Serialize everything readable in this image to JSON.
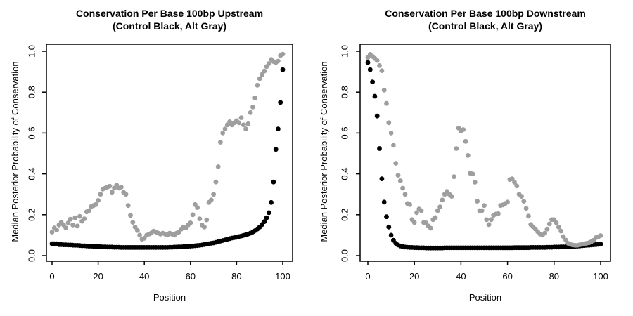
{
  "figure": {
    "background": "#ffffff",
    "text_color": "#000000",
    "control_color": "#000000",
    "alt_color": "#9e9e9e"
  },
  "chart_data": [
    {
      "type": "scatter",
      "title": "Conservation Per Base 100bp Upstream",
      "subtitle": "(Control Black, Alt Gray)",
      "xlabel": "Position",
      "ylabel": "Median Posterior Probability of Conservation",
      "xlim": [
        0,
        100
      ],
      "ylim": [
        0.0,
        1.0
      ],
      "xticks": [
        0,
        20,
        40,
        60,
        80,
        100
      ],
      "ytick_labels": [
        "0.0",
        "0.2",
        "0.4",
        "0.6",
        "0.8",
        "1.0"
      ],
      "grid": false,
      "legend_position": "none",
      "marker": "filled-circle",
      "x": {
        "from": 0,
        "to": 100,
        "step": 1
      },
      "series": [
        {
          "name": "Control",
          "color": "#000000",
          "values": [
            0.058,
            0.058,
            0.058,
            0.054,
            0.054,
            0.053,
            0.053,
            0.052,
            0.052,
            0.051,
            0.05,
            0.05,
            0.049,
            0.048,
            0.048,
            0.047,
            0.046,
            0.046,
            0.045,
            0.045,
            0.044,
            0.044,
            0.043,
            0.043,
            0.042,
            0.042,
            0.042,
            0.041,
            0.041,
            0.041,
            0.04,
            0.04,
            0.04,
            0.04,
            0.04,
            0.04,
            0.04,
            0.04,
            0.04,
            0.04,
            0.04,
            0.04,
            0.04,
            0.04,
            0.04,
            0.04,
            0.04,
            0.04,
            0.04,
            0.04,
            0.04,
            0.041,
            0.041,
            0.042,
            0.042,
            0.043,
            0.043,
            0.044,
            0.044,
            0.045,
            0.046,
            0.047,
            0.048,
            0.049,
            0.05,
            0.052,
            0.054,
            0.056,
            0.058,
            0.06,
            0.062,
            0.065,
            0.068,
            0.071,
            0.074,
            0.077,
            0.08,
            0.083,
            0.086,
            0.088,
            0.09,
            0.093,
            0.096,
            0.099,
            0.102,
            0.106,
            0.11,
            0.115,
            0.122,
            0.13,
            0.14,
            0.152,
            0.166,
            0.185,
            0.21,
            0.26,
            0.36,
            0.52,
            0.62,
            0.75,
            0.91
          ]
        },
        {
          "name": "Alt",
          "color": "#9e9e9e",
          "values": [
            0.115,
            0.135,
            0.125,
            0.15,
            0.163,
            0.15,
            0.135,
            0.16,
            0.178,
            0.15,
            0.185,
            0.145,
            0.192,
            0.168,
            0.18,
            0.214,
            0.22,
            0.24,
            0.245,
            0.25,
            0.27,
            0.3,
            0.325,
            0.33,
            0.335,
            0.34,
            0.31,
            0.33,
            0.345,
            0.33,
            0.335,
            0.31,
            0.3,
            0.245,
            0.197,
            0.163,
            0.14,
            0.123,
            0.1,
            0.08,
            0.085,
            0.1,
            0.105,
            0.11,
            0.12,
            0.115,
            0.11,
            0.105,
            0.11,
            0.105,
            0.1,
            0.11,
            0.105,
            0.1,
            0.11,
            0.115,
            0.13,
            0.14,
            0.135,
            0.15,
            0.16,
            0.2,
            0.25,
            0.235,
            0.18,
            0.15,
            0.14,
            0.175,
            0.26,
            0.272,
            0.3,
            0.36,
            0.435,
            0.555,
            0.6,
            0.62,
            0.64,
            0.655,
            0.64,
            0.65,
            0.66,
            0.65,
            0.675,
            0.64,
            0.62,
            0.645,
            0.7,
            0.727,
            0.772,
            0.834,
            0.866,
            0.886,
            0.903,
            0.925,
            0.94,
            0.96,
            0.95,
            0.945,
            0.952,
            0.979,
            0.986
          ]
        }
      ]
    },
    {
      "type": "scatter",
      "title": "Conservation Per Base 100bp Downstream",
      "subtitle": "(Control Black, Alt Gray)",
      "xlabel": "Position",
      "ylabel": "Median Posterior Probability of Conservation",
      "xlim": [
        0,
        100
      ],
      "ylim": [
        0.0,
        1.0
      ],
      "xticks": [
        0,
        20,
        40,
        60,
        80,
        100
      ],
      "ytick_labels": [
        "0.0",
        "0.2",
        "0.4",
        "0.6",
        "0.8",
        "1.0"
      ],
      "grid": false,
      "legend_position": "none",
      "marker": "filled-circle",
      "x": {
        "from": 0,
        "to": 100,
        "step": 1
      },
      "series": [
        {
          "name": "Control",
          "color": "#000000",
          "values": [
            0.945,
            0.91,
            0.85,
            0.78,
            0.683,
            0.524,
            0.376,
            0.262,
            0.19,
            0.14,
            0.1,
            0.075,
            0.06,
            0.052,
            0.047,
            0.044,
            0.042,
            0.041,
            0.04,
            0.04,
            0.039,
            0.039,
            0.038,
            0.038,
            0.038,
            0.037,
            0.037,
            0.037,
            0.037,
            0.037,
            0.037,
            0.037,
            0.037,
            0.038,
            0.038,
            0.038,
            0.038,
            0.038,
            0.038,
            0.038,
            0.038,
            0.038,
            0.038,
            0.038,
            0.038,
            0.038,
            0.038,
            0.038,
            0.038,
            0.038,
            0.038,
            0.038,
            0.038,
            0.038,
            0.038,
            0.038,
            0.038,
            0.038,
            0.038,
            0.038,
            0.038,
            0.038,
            0.038,
            0.039,
            0.039,
            0.039,
            0.039,
            0.039,
            0.039,
            0.039,
            0.04,
            0.04,
            0.04,
            0.04,
            0.04,
            0.04,
            0.04,
            0.041,
            0.041,
            0.041,
            0.042,
            0.042,
            0.042,
            0.043,
            0.043,
            0.043,
            0.044,
            0.044,
            0.045,
            0.045,
            0.046,
            0.047,
            0.048,
            0.049,
            0.05,
            0.051,
            0.052,
            0.053,
            0.054,
            0.055,
            0.056
          ]
        },
        {
          "name": "Alt",
          "color": "#9e9e9e",
          "values": [
            0.97,
            0.985,
            0.975,
            0.965,
            0.955,
            0.93,
            0.905,
            0.81,
            0.745,
            0.65,
            0.6,
            0.54,
            0.452,
            0.393,
            0.366,
            0.33,
            0.3,
            0.255,
            0.25,
            0.176,
            0.162,
            0.21,
            0.228,
            0.22,
            0.162,
            0.16,
            0.145,
            0.134,
            0.176,
            0.186,
            0.22,
            0.238,
            0.272,
            0.3,
            0.314,
            0.3,
            0.29,
            0.386,
            0.524,
            0.624,
            0.61,
            0.617,
            0.559,
            0.49,
            0.403,
            0.4,
            0.359,
            0.266,
            0.22,
            0.22,
            0.245,
            0.176,
            0.152,
            0.176,
            0.197,
            0.203,
            0.205,
            0.245,
            0.248,
            0.255,
            0.262,
            0.372,
            0.376,
            0.359,
            0.341,
            0.3,
            0.29,
            0.266,
            0.231,
            0.193,
            0.152,
            0.141,
            0.13,
            0.117,
            0.105,
            0.1,
            0.11,
            0.13,
            0.155,
            0.176,
            0.176,
            0.16,
            0.14,
            0.12,
            0.093,
            0.076,
            0.06,
            0.055,
            0.052,
            0.05,
            0.05,
            0.053,
            0.055,
            0.058,
            0.06,
            0.063,
            0.068,
            0.075,
            0.088,
            0.092,
            0.098
          ]
        }
      ]
    }
  ]
}
